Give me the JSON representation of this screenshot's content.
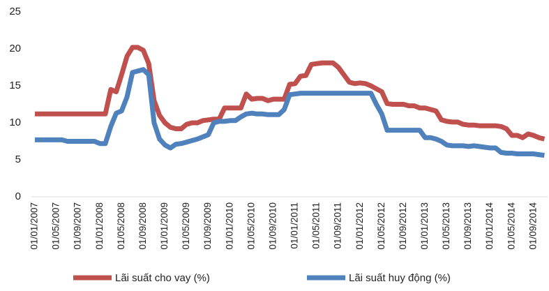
{
  "chart_data": {
    "type": "line",
    "categories": [
      "01/01/2007",
      null,
      null,
      null,
      "01/05/2007",
      null,
      null,
      null,
      "01/09/2007",
      null,
      null,
      null,
      "01/01/2008",
      null,
      null,
      null,
      "01/05/2008",
      null,
      null,
      null,
      "01/09/2008",
      null,
      null,
      null,
      "01/01/2009",
      null,
      null,
      null,
      "01/05/2009",
      null,
      null,
      null,
      "01/09/2009",
      null,
      null,
      null,
      "01/01/2010",
      null,
      null,
      null,
      "01/05/2010",
      null,
      null,
      null,
      "01/09/2010",
      null,
      null,
      null,
      "01/01/2011",
      null,
      null,
      null,
      "01/05/2011",
      null,
      null,
      null,
      "01/09/2011",
      null,
      null,
      null,
      "01/01/2012",
      null,
      null,
      null,
      "01/05/2012",
      null,
      null,
      null,
      "01/09/2012",
      null,
      null,
      null,
      "01/01/2013",
      null,
      null,
      null,
      "01/05/2013",
      null,
      null,
      null,
      "01/09/2013",
      null,
      null,
      null,
      "01/01/2014",
      null,
      null,
      null,
      "01/05/2014",
      null,
      null,
      null,
      "01/09/2014",
      null,
      null
    ],
    "series": [
      {
        "name": "Lãi suất cho vay (%)",
        "color": "#c0504d",
        "values": [
          11.2,
          11.2,
          11.2,
          11.2,
          11.2,
          11.2,
          11.2,
          11.2,
          11.2,
          11.2,
          11.2,
          11.2,
          11.2,
          11.2,
          14.5,
          14.2,
          16.5,
          19,
          20.2,
          20.2,
          19.8,
          18,
          13,
          11,
          10,
          9.4,
          9.2,
          9.2,
          9.8,
          10,
          10,
          10.3,
          10.4,
          10.5,
          10.5,
          12,
          12,
          12,
          12,
          13.9,
          13.2,
          13.3,
          13.3,
          13,
          13.2,
          13.2,
          13.2,
          15.2,
          15.3,
          16.3,
          16.4,
          17.9,
          18,
          18.1,
          18.1,
          18.1,
          17.5,
          16.5,
          15.5,
          15.3,
          15.4,
          15.3,
          15,
          14.6,
          14.2,
          12.6,
          12.5,
          12.5,
          12.5,
          12.3,
          12.3,
          12,
          12,
          11.8,
          11.6,
          10.4,
          10.2,
          10.1,
          10.1,
          9.8,
          9.7,
          9.7,
          9.6,
          9.6,
          9.6,
          9.6,
          9.5,
          9.2,
          8.3,
          8.3,
          8,
          8.5,
          8.3,
          8,
          7.8
        ]
      },
      {
        "name": "Lãi suất huy động (%)",
        "color": "#4f81bd",
        "values": [
          7.7,
          7.7,
          7.7,
          7.7,
          7.7,
          7.7,
          7.5,
          7.5,
          7.5,
          7.5,
          7.5,
          7.5,
          7.2,
          7.2,
          9.5,
          11.3,
          11.6,
          13.5,
          16.8,
          17,
          17.2,
          16.5,
          10,
          7.8,
          7,
          6.6,
          7.1,
          7.2,
          7.4,
          7.6,
          7.8,
          8.1,
          8.4,
          10,
          10.2,
          10.2,
          10.3,
          10.3,
          10.8,
          11.2,
          11.3,
          11.2,
          11.2,
          11.1,
          11.1,
          11.1,
          11.8,
          13.8,
          13.9,
          14,
          14,
          14,
          14,
          14,
          14,
          14,
          14,
          14,
          14,
          14,
          14,
          14,
          14,
          12.5,
          11.2,
          9,
          9,
          9,
          9,
          9,
          9,
          9,
          8,
          8,
          7.8,
          7.5,
          7,
          6.9,
          6.9,
          6.9,
          6.8,
          6.9,
          6.8,
          6.7,
          6.6,
          6.6,
          6,
          5.9,
          5.9,
          5.8,
          5.8,
          5.8,
          5.8,
          5.7,
          5.6
        ]
      }
    ],
    "ylim": [
      0,
      25
    ],
    "yticks": [
      0,
      5,
      10,
      15,
      20,
      25
    ],
    "grid": false,
    "legend": "bottom"
  }
}
